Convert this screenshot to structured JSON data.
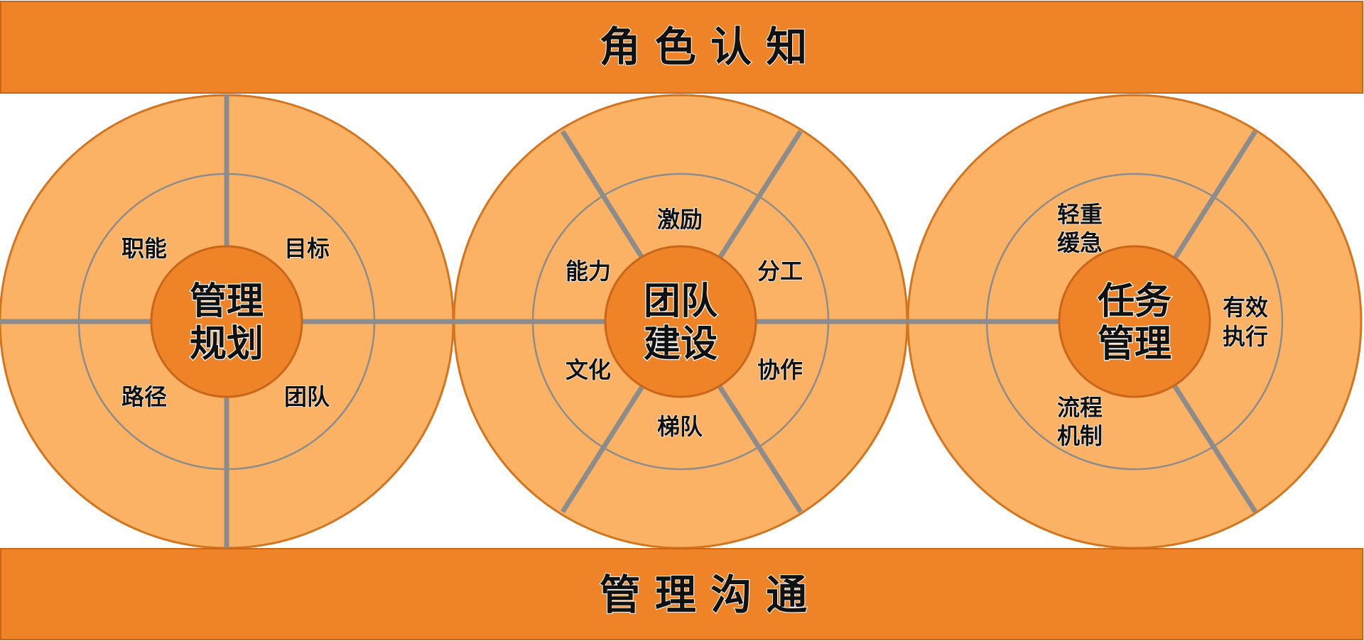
{
  "top_banner": {
    "label": "角 色 认 知"
  },
  "bottom_banner": {
    "label": "管 理 沟 通"
  },
  "colors": {
    "banner": "#EE8427",
    "banner_stroke": "#C9661A",
    "outer_ring": "#FBB264",
    "inner_ring": "#FBB264",
    "ring_stroke": "#D3741F",
    "hub": "#EE8427",
    "divider": "#8C8C8C",
    "inner_circle_stroke": "#8C8C8C",
    "text": "#111111",
    "hub_text_shadow": "#ffffff"
  },
  "wheels": [
    {
      "hub_lines": [
        "管理",
        "规划"
      ],
      "segments": [
        {
          "lines": [
            "职能"
          ]
        },
        {
          "lines": [
            "目标"
          ]
        },
        {
          "lines": [
            "路径"
          ]
        },
        {
          "lines": [
            "团队"
          ]
        }
      ]
    },
    {
      "hub_lines": [
        "团队",
        "建设"
      ],
      "segments": [
        {
          "lines": [
            "激励"
          ]
        },
        {
          "lines": [
            "能力"
          ]
        },
        {
          "lines": [
            "分工"
          ]
        },
        {
          "lines": [
            "文化"
          ]
        },
        {
          "lines": [
            "协作"
          ]
        },
        {
          "lines": [
            "梯队"
          ]
        }
      ]
    },
    {
      "hub_lines": [
        "任务",
        "管理"
      ],
      "segments": [
        {
          "lines": [
            "轻重",
            "缓急"
          ]
        },
        {
          "lines": [
            "有效",
            "执行"
          ]
        },
        {
          "lines": [
            "流程",
            "机制"
          ]
        }
      ]
    }
  ]
}
